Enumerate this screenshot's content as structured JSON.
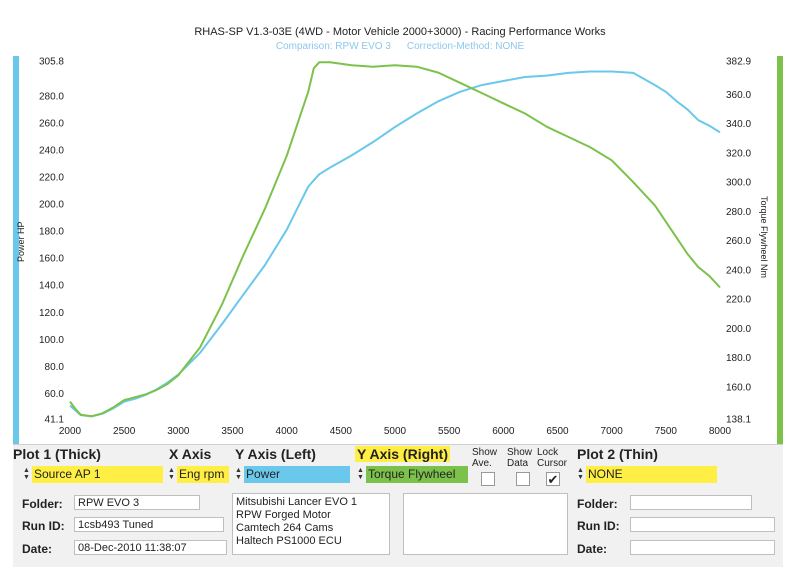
{
  "chart_data": {
    "type": "line",
    "title": "RHAS-SP V1.3-03E  (4WD - Motor Vehicle 2000+3000) - Racing Performance Works",
    "subtitle_comparison": "Comparison: RPW EVO 3",
    "subtitle_correction": "Correction-Method: NONE",
    "xlim": [
      2000,
      8000
    ],
    "x_ticks": [
      "2000",
      "2500",
      "3000",
      "3500",
      "4000",
      "4500",
      "5000",
      "5500",
      "6000",
      "6500",
      "7000",
      "7500",
      "8000"
    ],
    "ylabel_left": "Power HP",
    "ylim_left": [
      41.1,
      305.8
    ],
    "y_ticks_left": [
      "305.8",
      "280.0",
      "260.0",
      "240.0",
      "220.0",
      "200.0",
      "180.0",
      "160.0",
      "140.0",
      "120.0",
      "100.0",
      "80.0",
      "60.0",
      "41.1"
    ],
    "ylabel_right": "Torque Flywheel Nm",
    "ylim_right": [
      138.1,
      382.9
    ],
    "y_ticks_right": [
      "382.9",
      "360.0",
      "340.0",
      "320.0",
      "300.0",
      "280.0",
      "260.0",
      "240.0",
      "220.0",
      "200.0",
      "180.0",
      "160.0",
      "138.1"
    ],
    "grid": false,
    "colors": {
      "power": "#6ac8ec",
      "torque": "#7cc24a"
    },
    "series": [
      {
        "axis": "left",
        "x": [
          2000,
          2100,
          2200,
          2300,
          2400,
          2500,
          2600,
          2700,
          2800,
          2900,
          3000,
          3200,
          3400,
          3600,
          3800,
          4000,
          4100,
          4200,
          4300,
          4400,
          4600,
          4800,
          5000,
          5200,
          5400,
          5600,
          5800,
          6000,
          6200,
          6400,
          6600,
          6800,
          7000,
          7200,
          7400,
          7500,
          7600,
          7700,
          7800,
          7900,
          8000
        ],
        "values": [
          51,
          44,
          43,
          45,
          49,
          54,
          56,
          59,
          63,
          68,
          74,
          90,
          111,
          133,
          155,
          181,
          197,
          213,
          222,
          227,
          236,
          246,
          257,
          267,
          276,
          283,
          288,
          291,
          294,
          295,
          297,
          298,
          298,
          297,
          288,
          283,
          276,
          270,
          262,
          258,
          253
        ]
      },
      {
        "axis": "right",
        "x": [
          2000,
          2050,
          2100,
          2200,
          2300,
          2400,
          2500,
          2600,
          2700,
          2800,
          2900,
          3000,
          3200,
          3400,
          3600,
          3800,
          4000,
          4100,
          4200,
          4250,
          4300,
          4400,
          4600,
          4800,
          5000,
          5200,
          5400,
          5600,
          5800,
          6000,
          6200,
          6400,
          6600,
          6800,
          7000,
          7200,
          7400,
          7600,
          7700,
          7800,
          7900,
          8000
        ],
        "values": [
          150,
          145,
          141,
          140,
          142,
          146,
          151,
          153,
          155,
          158,
          162,
          168,
          187,
          216,
          250,
          282,
          318,
          340,
          362,
          378,
          382,
          382,
          380,
          379,
          380,
          379,
          375,
          368,
          361,
          354,
          347,
          338,
          331,
          324,
          315,
          300,
          284,
          262,
          251,
          242,
          236,
          228
        ]
      }
    ]
  },
  "panel": {
    "plot1_header": "Plot 1 (Thick)",
    "plot1_value": "Source AP 1",
    "xaxis_header": "X Axis",
    "xaxis_value": "Eng rpm",
    "yleft_header": "Y Axis (Left)",
    "yleft_value": "Power",
    "yright_header": "Y Axis (Right)",
    "yright_value": "Torque Flywheel",
    "show_ave": "Show\nAve.",
    "show_data": "Show\nData",
    "lock_cursor": "Lock\nCursor",
    "plot2_header": "Plot 2 (Thin)",
    "plot2_value": "NONE",
    "folder_label": "Folder:",
    "folder_value": "RPW EVO 3",
    "runid_label": "Run ID:",
    "runid_value": "1csb493 Tuned",
    "date_label": "Date:",
    "date_value": "08-Dec-2010  11:38:07",
    "description_lines": [
      "Mitsubishi Lancer EVO 1",
      "RPW Forged Motor",
      "Camtech 264 Cams",
      "Haltech PS1000 ECU"
    ],
    "folder2_label": "Folder:",
    "runid2_label": "Run ID:",
    "date2_label": "Date:",
    "lock_checked": true
  }
}
